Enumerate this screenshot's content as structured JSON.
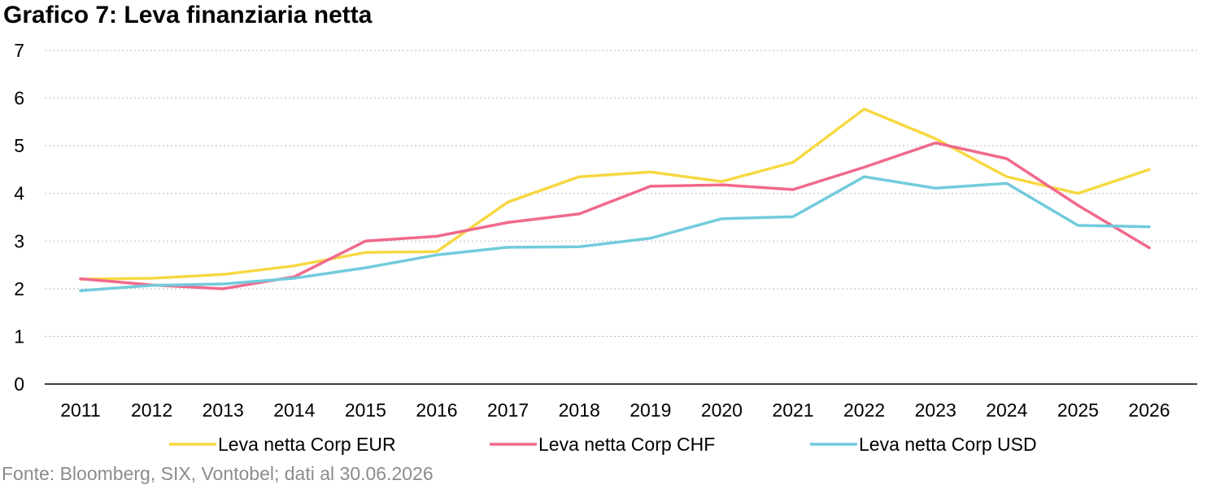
{
  "title": "Grafico 7: Leva finanziaria netta",
  "source": "Fonte: Bloomberg, SIX, Vontobel; dati al 30.06.2026",
  "chart_data": {
    "type": "line",
    "title": "Grafico 7: Leva finanziaria netta",
    "xlabel": "",
    "ylabel": "",
    "categories": [
      "2011",
      "2012",
      "2013",
      "2014",
      "2015",
      "2016",
      "2017",
      "2018",
      "2019",
      "2020",
      "2021",
      "2022",
      "2023",
      "2024",
      "2025",
      "2026"
    ],
    "ylim": [
      0,
      7
    ],
    "yticks": [
      "0",
      "1",
      "2",
      "3",
      "4",
      "5",
      "6",
      "7"
    ],
    "grid": true,
    "legend_position": "bottom",
    "series": [
      {
        "name": "Leva netta Corp EUR",
        "color": "#f7d842",
        "values": [
          2.2,
          2.22,
          2.3,
          2.48,
          2.76,
          2.78,
          3.82,
          4.35,
          4.45,
          4.25,
          4.65,
          5.77,
          5.15,
          4.35,
          4.0,
          4.5
        ]
      },
      {
        "name": "Leva netta Corp CHF",
        "color": "#f0698c",
        "values": [
          2.21,
          2.08,
          2.0,
          2.25,
          3.0,
          3.1,
          3.39,
          3.57,
          4.15,
          4.18,
          4.08,
          4.55,
          5.06,
          4.73,
          3.75,
          2.86
        ]
      },
      {
        "name": "Leva netta Corp USD",
        "color": "#72cbdc",
        "values": [
          1.96,
          2.07,
          2.1,
          2.22,
          2.44,
          2.71,
          2.87,
          2.88,
          3.06,
          3.47,
          3.51,
          4.35,
          4.11,
          4.21,
          3.33,
          3.3
        ]
      }
    ]
  }
}
